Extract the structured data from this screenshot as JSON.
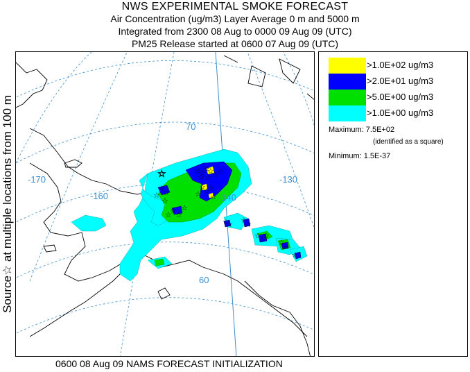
{
  "header": {
    "title": "NWS EXPERIMENTAL SMOKE FORECAST",
    "line2": "Air Concentration (ug/m3) Layer Average    0 m and  5000 m",
    "line3": "Integrated from 2300 08 Aug to 0000 09 Aug 09 (UTC)",
    "line4": "PM25 Release started at 0600 07 Aug 09 (UTC)"
  },
  "side_label": "Source☆  at multiple locations    from   100 m",
  "map": {
    "graticule_labels": {
      "lon_170": "-170",
      "lon_160": "-160",
      "lon_140": "-140",
      "lon_130": "-130",
      "lat_70": "70",
      "lat_60": "60"
    },
    "colors": {
      "land": "#ffffff",
      "coast": "#000000",
      "graticule": "#3a8fd0"
    }
  },
  "legend": {
    "items": [
      {
        "label": ">1.0E+02 ug/m3",
        "color": "#ffff00"
      },
      {
        "label": ">2.0E+01 ug/m3",
        "color": "#0000ff"
      },
      {
        "label": ">5.0E+00 ug/m3",
        "color": "#00e000"
      },
      {
        "label": ">1.0E+00 ug/m3",
        "color": "#00ffff"
      }
    ],
    "maximum": "Maximum: 7.5E+02",
    "maximum_note": "(identified as a square)",
    "minimum": "Minimum: 1.5E-37"
  },
  "footer": "0600 08 Aug 09 NAMS FORECAST INITIALIZATION"
}
